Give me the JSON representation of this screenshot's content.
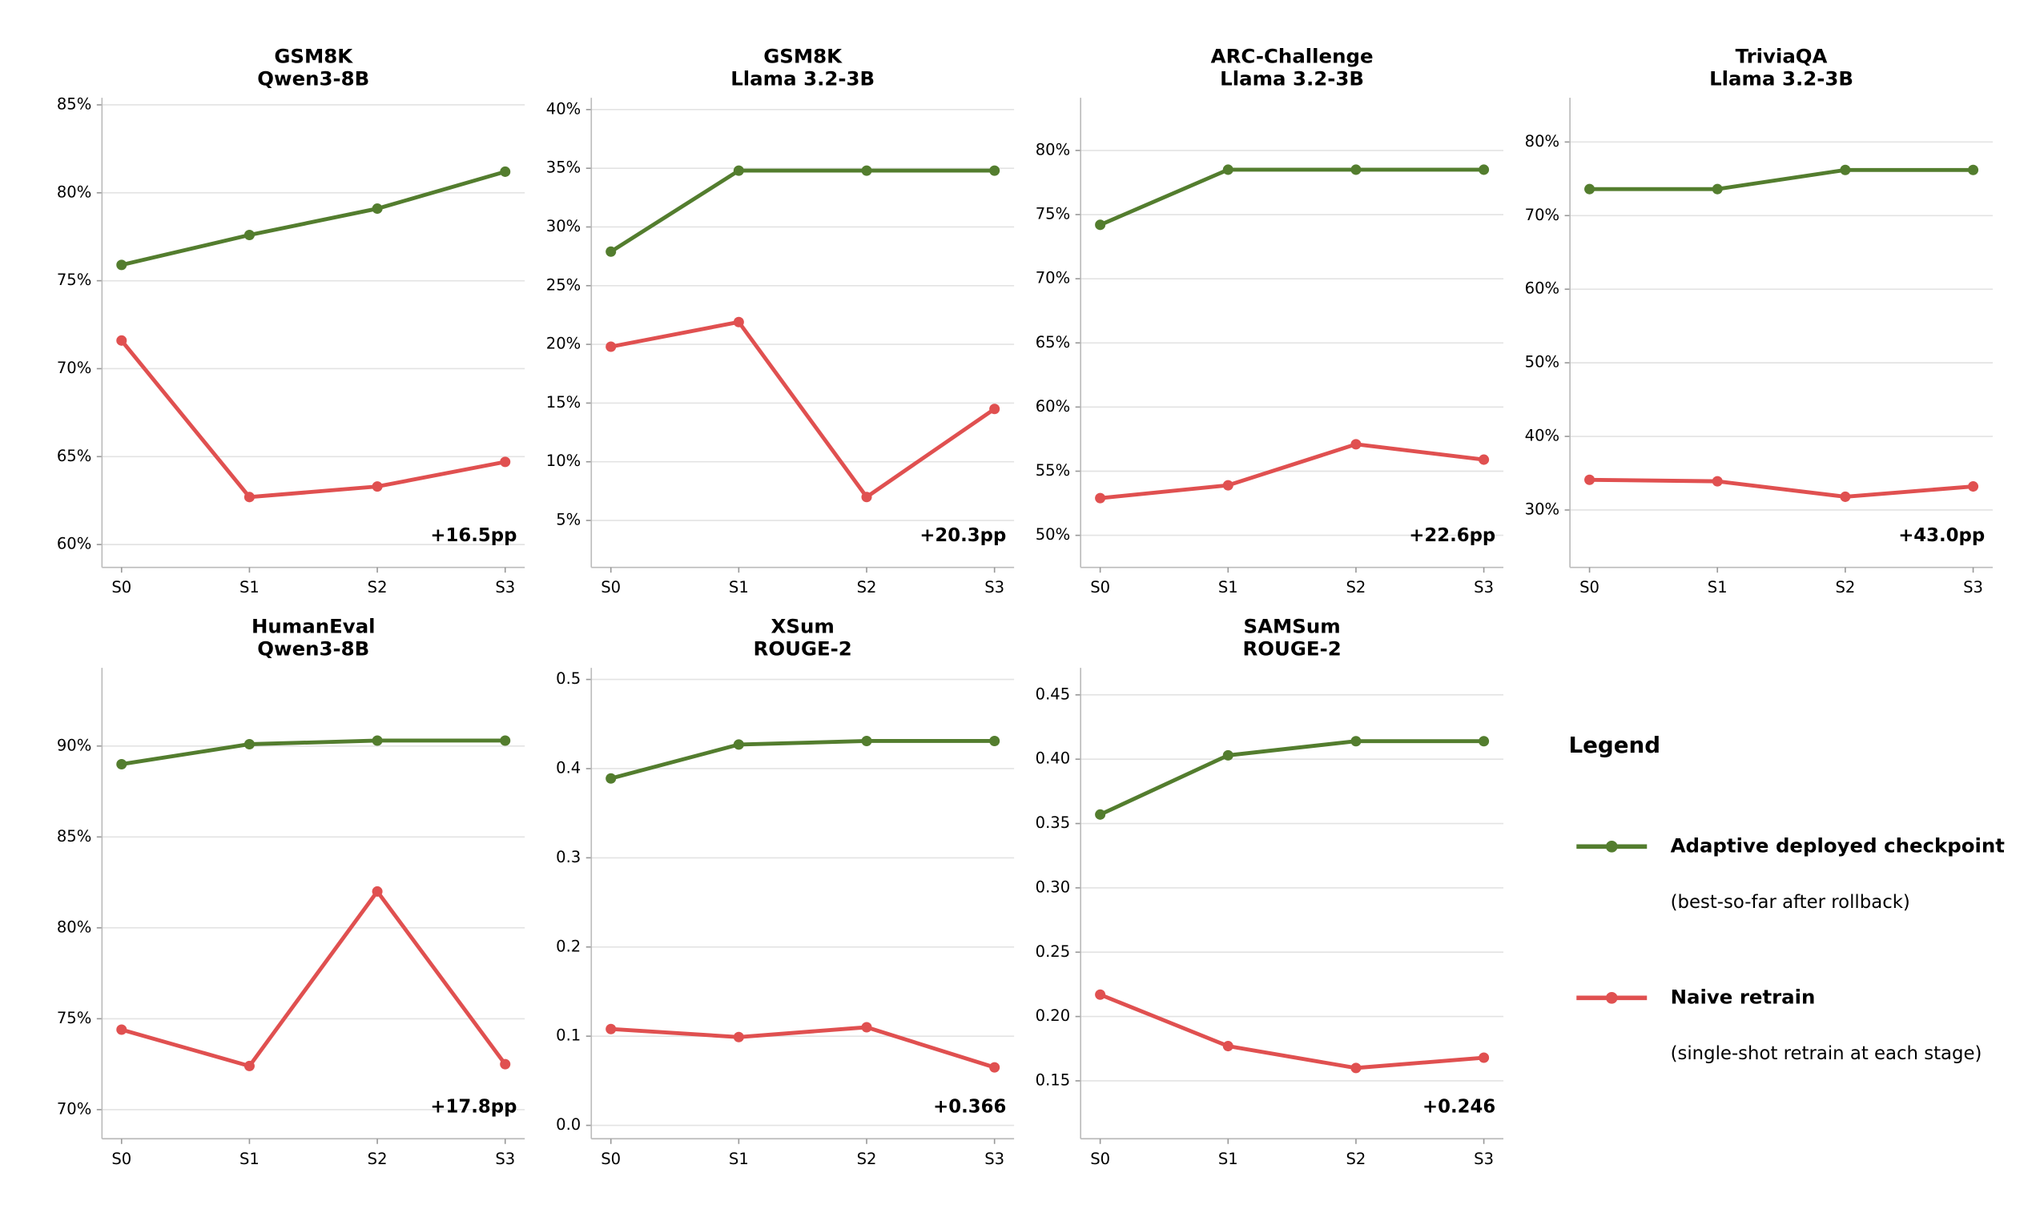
{
  "chart_data": [
    {
      "type": "line",
      "title": "GSM8K",
      "subtitle": "Qwen3-8B",
      "categories": [
        "S0",
        "S1",
        "S2",
        "S3"
      ],
      "series": [
        {
          "color": "#537d2e",
          "values": [
            75.9,
            77.6,
            79.1,
            81.2
          ]
        },
        {
          "color": "#e05050",
          "values": [
            71.6,
            62.7,
            63.3,
            64.7
          ]
        }
      ],
      "ylim": [
        58.7,
        85.4
      ],
      "yticks": [
        {
          "value": 60,
          "label": "60%"
        },
        {
          "value": 65,
          "label": "65%"
        },
        {
          "value": 70,
          "label": "70%"
        },
        {
          "value": 75,
          "label": "75%"
        },
        {
          "value": 80,
          "label": "80%"
        },
        {
          "value": 85,
          "label": "85%"
        }
      ],
      "annotation": "+16.5pp",
      "grid": true
    },
    {
      "type": "line",
      "title": "GSM8K",
      "subtitle": "Llama 3.2-3B",
      "categories": [
        "S0",
        "S1",
        "S2",
        "S3"
      ],
      "series": [
        {
          "color": "#537d2e",
          "values": [
            27.9,
            34.8,
            34.8,
            34.8
          ]
        },
        {
          "color": "#e05050",
          "values": [
            19.8,
            21.9,
            7.0,
            14.5
          ]
        }
      ],
      "ylim": [
        1,
        41
      ],
      "yticks": [
        {
          "value": 5,
          "label": "5%"
        },
        {
          "value": 10,
          "label": "10%"
        },
        {
          "value": 15,
          "label": "15%"
        },
        {
          "value": 20,
          "label": "20%"
        },
        {
          "value": 25,
          "label": "25%"
        },
        {
          "value": 30,
          "label": "30%"
        },
        {
          "value": 35,
          "label": "35%"
        },
        {
          "value": 40,
          "label": "40%"
        }
      ],
      "annotation": "+20.3pp",
      "grid": true
    },
    {
      "type": "line",
      "title": "ARC-Challenge",
      "subtitle": "Llama 3.2-3B",
      "categories": [
        "S0",
        "S1",
        "S2",
        "S3"
      ],
      "series": [
        {
          "color": "#537d2e",
          "values": [
            74.2,
            78.5,
            78.5,
            78.5
          ]
        },
        {
          "color": "#e05050",
          "values": [
            52.9,
            53.9,
            57.1,
            55.9
          ]
        }
      ],
      "ylim": [
        47.5,
        84.1
      ],
      "yticks": [
        {
          "value": 50,
          "label": "50%"
        },
        {
          "value": 55,
          "label": "55%"
        },
        {
          "value": 60,
          "label": "60%"
        },
        {
          "value": 65,
          "label": "65%"
        },
        {
          "value": 70,
          "label": "70%"
        },
        {
          "value": 75,
          "label": "75%"
        },
        {
          "value": 80,
          "label": "80%"
        }
      ],
      "annotation": "+22.6pp",
      "grid": true
    },
    {
      "type": "line",
      "title": "TriviaQA",
      "subtitle": "Llama 3.2-3B",
      "categories": [
        "S0",
        "S1",
        "S2",
        "S3"
      ],
      "series": [
        {
          "color": "#537d2e",
          "values": [
            73.6,
            73.6,
            76.2,
            76.2
          ]
        },
        {
          "color": "#e05050",
          "values": [
            34.1,
            33.9,
            31.8,
            33.2
          ]
        }
      ],
      "ylim": [
        22.2,
        86
      ],
      "yticks": [
        {
          "value": 30,
          "label": "30%"
        },
        {
          "value": 40,
          "label": "40%"
        },
        {
          "value": 50,
          "label": "50%"
        },
        {
          "value": 60,
          "label": "60%"
        },
        {
          "value": 70,
          "label": "70%"
        },
        {
          "value": 80,
          "label": "80%"
        }
      ],
      "annotation": "+43.0pp",
      "grid": true
    },
    {
      "type": "line",
      "title": "HumanEval",
      "subtitle": "Qwen3-8B",
      "categories": [
        "S0",
        "S1",
        "S2",
        "S3"
      ],
      "series": [
        {
          "color": "#537d2e",
          "values": [
            89.0,
            90.1,
            90.3,
            90.3
          ]
        },
        {
          "color": "#e05050",
          "values": [
            74.4,
            72.4,
            82.0,
            72.5
          ]
        }
      ],
      "ylim": [
        68.4,
        94.3
      ],
      "yticks": [
        {
          "value": 70,
          "label": "70%"
        },
        {
          "value": 75,
          "label": "75%"
        },
        {
          "value": 80,
          "label": "80%"
        },
        {
          "value": 85,
          "label": "85%"
        },
        {
          "value": 90,
          "label": "90%"
        }
      ],
      "annotation": "+17.8pp",
      "grid": true
    },
    {
      "type": "line",
      "title": "XSum",
      "subtitle": "ROUGE-2",
      "categories": [
        "S0",
        "S1",
        "S2",
        "S3"
      ],
      "series": [
        {
          "color": "#537d2e",
          "values": [
            0.389,
            0.427,
            0.431,
            0.431
          ]
        },
        {
          "color": "#e05050",
          "values": [
            0.108,
            0.099,
            0.11,
            0.065
          ]
        }
      ],
      "ylim": [
        -0.015,
        0.513
      ],
      "yticks": [
        {
          "value": 0,
          "label": "0.0"
        },
        0.1,
        0.2,
        0.3,
        0.4,
        0.5
      ],
      "annotation": "+0.366",
      "grid": true
    },
    {
      "type": "line",
      "title": "SAMSum",
      "subtitle": "ROUGE-2",
      "categories": [
        "S0",
        "S1",
        "S2",
        "S3"
      ],
      "series": [
        {
          "color": "#537d2e",
          "values": [
            0.357,
            0.403,
            0.414,
            0.414
          ]
        },
        {
          "color": "#e05050",
          "values": [
            0.217,
            0.177,
            0.16,
            0.168
          ]
        }
      ],
      "ylim": [
        0.105,
        0.471
      ],
      "yticks": [
        0.15,
        {
          "value": 0.2,
          "label": "0.20"
        },
        0.25,
        {
          "value": 0.3,
          "label": "0.30"
        },
        0.35,
        {
          "value": 0.4,
          "label": "0.40"
        },
        0.45
      ],
      "annotation": "+0.246",
      "grid": true
    }
  ],
  "legend": {
    "title": "Legend",
    "entries": [
      {
        "name": "Adaptive deployed checkpoint",
        "note": "(best-so-far after rollback)",
        "color": "#537d2e"
      },
      {
        "name": "Naive retrain",
        "note": "(single-shot retrain at each stage)",
        "color": "#e05050"
      }
    ]
  }
}
